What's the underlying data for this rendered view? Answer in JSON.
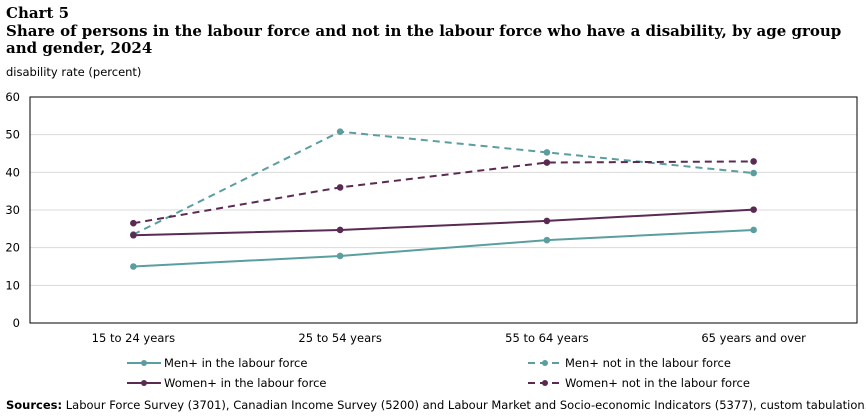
{
  "header": {
    "chart_label": "Chart 5",
    "title": "Share of persons in the labour force and not in the labour force who have a disability, by age group and gender, 2024",
    "y_axis_label": "disability rate (percent)"
  },
  "chart_data": {
    "type": "line",
    "categories": [
      "15 to 24 years",
      "25 to 54 years",
      "55 to 64 years",
      "65 years and over"
    ],
    "ylim": [
      0,
      60
    ],
    "yticks": [
      0,
      10,
      20,
      30,
      40,
      50,
      60
    ],
    "ylabel": "disability rate (percent)",
    "grid": true,
    "legend_position": "bottom",
    "series": [
      {
        "name": "Men+ in the labour force",
        "values": [
          15.0,
          17.8,
          22.0,
          24.7
        ],
        "color": "#5b9ea0",
        "dashed": false
      },
      {
        "name": "Men+ not in the labour force",
        "values": [
          23.5,
          50.8,
          45.3,
          39.8
        ],
        "color": "#5b9ea0",
        "dashed": true
      },
      {
        "name": "Women+ in the labour force",
        "values": [
          23.3,
          24.7,
          27.1,
          30.1
        ],
        "color": "#5b2a52",
        "dashed": false
      },
      {
        "name": "Women+ not in the labour force",
        "values": [
          26.5,
          36.0,
          42.6,
          42.9
        ],
        "color": "#5b2a52",
        "dashed": true
      }
    ]
  },
  "footer": {
    "sources_label": "Sources:",
    "sources_text": " Labour Force Survey (3701), Canadian Income Survey (5200) and Labour Market and Socio-economic Indicators (5377), custom tabulation."
  }
}
